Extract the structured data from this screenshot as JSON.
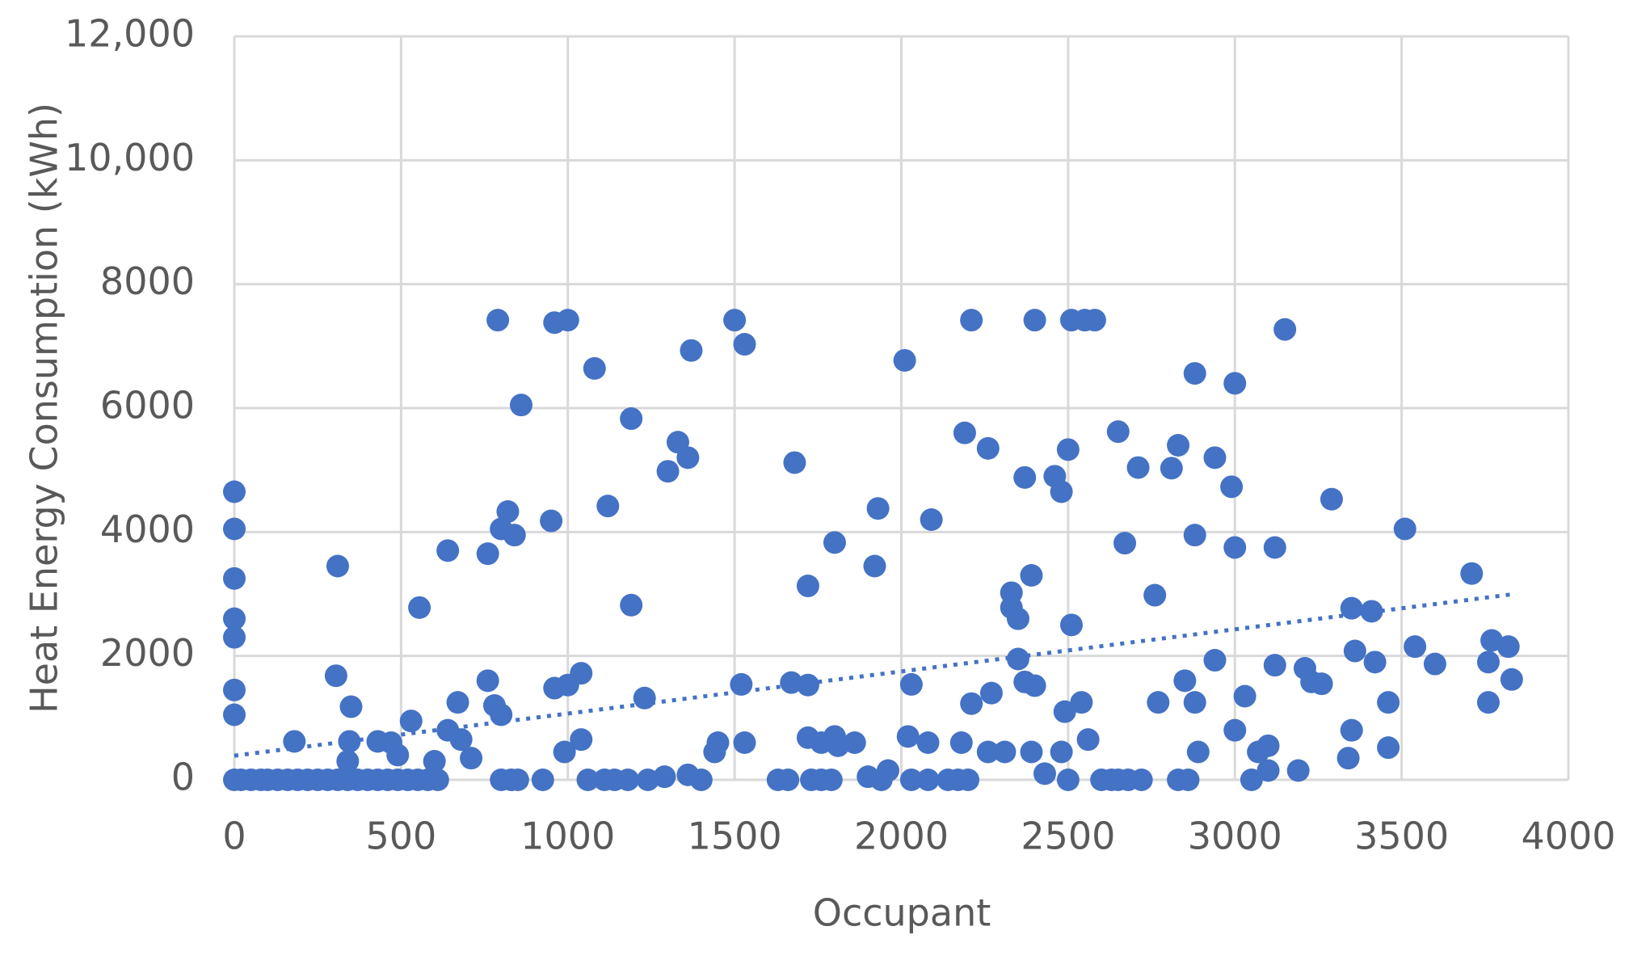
{
  "chart_data": {
    "type": "scatter",
    "x_label": "Occupant",
    "y_label": "Heat Energy Consumption (kWh)",
    "xlim": [
      0,
      4000
    ],
    "xticks": [
      0,
      500,
      1000,
      1500,
      2000,
      2500,
      3000,
      3500,
      4000
    ],
    "ylim": [
      0,
      12000
    ],
    "yticks": [
      0,
      2000,
      4000,
      6000,
      8000,
      {
        "value": 10000,
        "label": "10,000"
      },
      {
        "value": 12000,
        "label": "12,000"
      }
    ],
    "grid": true,
    "color": "#4472c4",
    "x": [
      0,
      0,
      0,
      0,
      0,
      0,
      0,
      0,
      20,
      50,
      80,
      100,
      130,
      160,
      190,
      220,
      250,
      280,
      310,
      340,
      370,
      400,
      430,
      460,
      490,
      520,
      550,
      580,
      610,
      180,
      310,
      305,
      350,
      345,
      340,
      430,
      470,
      490,
      530,
      555,
      600,
      640,
      640,
      670,
      680,
      710,
      760,
      760,
      780,
      800,
      790,
      800,
      820,
      840,
      860,
      800,
      830,
      850,
      925,
      950,
      960,
      1000,
      960,
      1000,
      1040,
      990,
      1040,
      1080,
      1120,
      1190,
      1190,
      1230,
      1060,
      1110,
      1140,
      1180,
      1240,
      1300,
      1330,
      1360,
      1370,
      1290,
      1360,
      1400,
      1440,
      1450,
      1500,
      1530,
      1520,
      1530,
      1630,
      1660,
      1680,
      1720,
      1670,
      1720,
      1720,
      1760,
      1800,
      1810,
      1860,
      1730,
      1760,
      1790,
      1800,
      1920,
      1930,
      1900,
      1940,
      1960,
      2010,
      2030,
      2020,
      2080,
      2030,
      2080,
      2140,
      2170,
      2200,
      2090,
      2190,
      2210,
      2260,
      2180,
      2210,
      2270,
      2260,
      2310,
      2330,
      2330,
      2350,
      2370,
      2390,
      2400,
      2350,
      2370,
      2400,
      2390,
      2430,
      2460,
      2480,
      2500,
      2510,
      2490,
      2540,
      2480,
      2560,
      2500,
      2510,
      2550,
      2580,
      2600,
      2630,
      2650,
      2680,
      2720,
      2650,
      2670,
      2710,
      2760,
      2770,
      2810,
      2830,
      2850,
      2880,
      2890,
      2830,
      2860,
      2880,
      2880,
      2940,
      2940,
      2990,
      3000,
      3000,
      3000,
      3030,
      3070,
      3100,
      3100,
      3050,
      3120,
      3120,
      3150,
      3190,
      3210,
      3230,
      3260,
      3290,
      3340,
      3350,
      3350,
      3360,
      3410,
      3420,
      3460,
      3460,
      3510,
      3540,
      3600,
      3710,
      3760,
      3770,
      3760,
      3820,
      3830
    ],
    "values": [
      4650,
      4050,
      3250,
      2600,
      2300,
      1450,
      1050,
      0,
      0,
      0,
      0,
      0,
      0,
      0,
      0,
      0,
      0,
      0,
      0,
      0,
      0,
      0,
      0,
      0,
      0,
      0,
      0,
      0,
      0,
      620,
      3450,
      1680,
      1180,
      620,
      300,
      620,
      600,
      400,
      950,
      2780,
      300,
      800,
      3700,
      1250,
      650,
      350,
      3650,
      1600,
      1200,
      1050,
      7420,
      4050,
      4330,
      3950,
      6050,
      0,
      0,
      0,
      0,
      4180,
      7380,
      7420,
      1480,
      1530,
      1720,
      450,
      650,
      6640,
      4420,
      5830,
      2820,
      1320,
      0,
      0,
      0,
      0,
      0,
      4980,
      5450,
      5200,
      6930,
      50,
      80,
      0,
      450,
      600,
      7420,
      7030,
      1540,
      600,
      0,
      0,
      5120,
      3130,
      1570,
      1530,
      680,
      600,
      700,
      550,
      600,
      0,
      0,
      0,
      3830,
      3450,
      4380,
      50,
      0,
      150,
      6770,
      1540,
      700,
      600,
      0,
      0,
      0,
      0,
      0,
      4200,
      5600,
      7420,
      5350,
      600,
      1230,
      1400,
      450,
      450,
      3020,
      2780,
      2600,
      4880,
      3300,
      7420,
      1950,
      1580,
      1520,
      450,
      100,
      4900,
      4650,
      5330,
      2500,
      1100,
      1250,
      450,
      650,
      0,
      7420,
      7420,
      7420,
      0,
      0,
      0,
      0,
      0,
      5620,
      3820,
      5040,
      2980,
      1250,
      5030,
      5400,
      1600,
      1250,
      450,
      0,
      0,
      6560,
      3950,
      5200,
      1930,
      4730,
      6400,
      3750,
      800,
      1350,
      450,
      550,
      150,
      0,
      3750,
      1850,
      7270,
      150,
      1800,
      1580,
      1550,
      4530,
      350,
      800,
      2770,
      2080,
      2720,
      1900,
      1250,
      520,
      4050,
      2150,
      1870,
      3330,
      1900,
      2250,
      1250,
      2150,
      1620
    ],
    "trendline": {
      "x": [
        0,
        3840
      ],
      "values": [
        390,
        3000
      ],
      "style": "dotted"
    }
  }
}
